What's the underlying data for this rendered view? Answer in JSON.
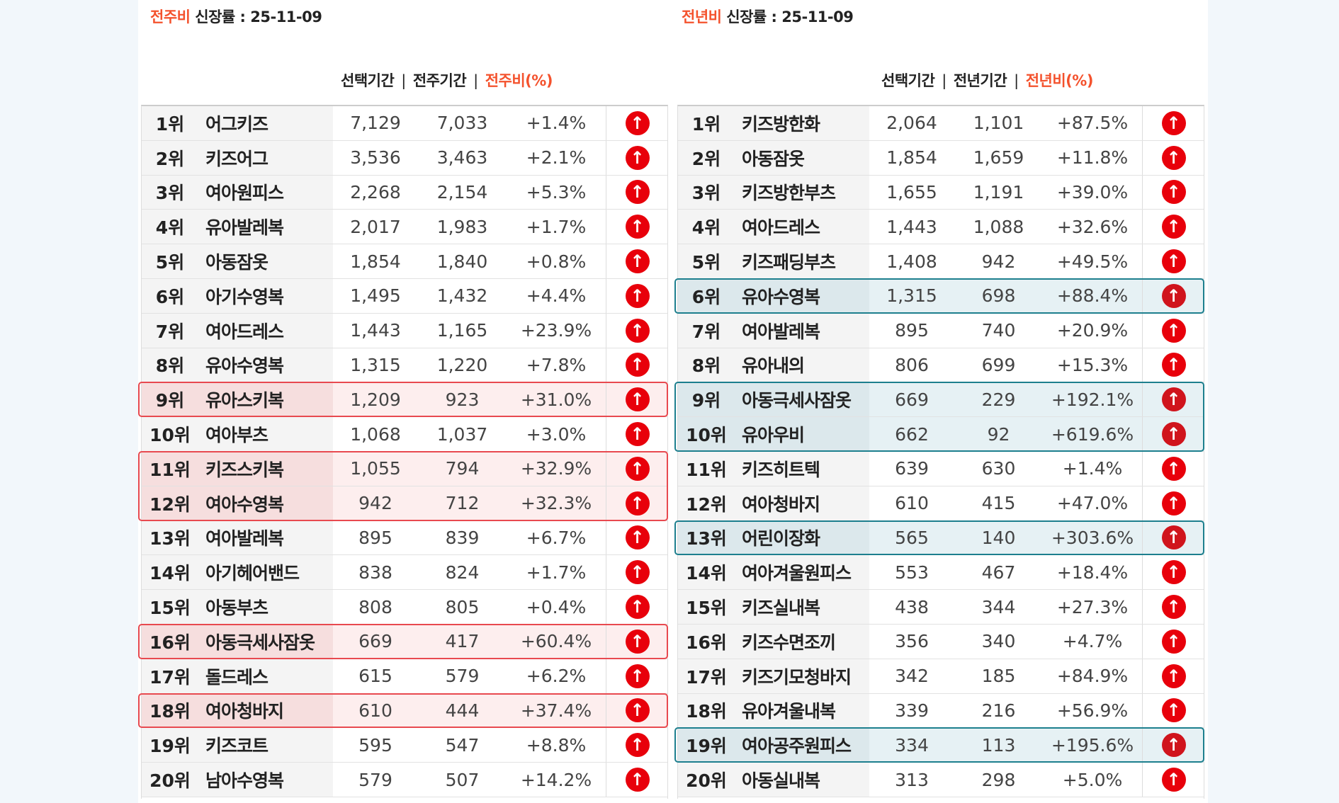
{
  "left": {
    "title_accent": "전주비",
    "title_rest": " 신장률  : 25-11-09",
    "headers": [
      "선택기간",
      "전주기간",
      "전주비(%)"
    ],
    "separator": "|",
    "highlight_color": "#e8494f",
    "rows": [
      {
        "rank": "1위",
        "name": "어그키즈",
        "cur": "7,129",
        "prev": "7,033",
        "pct": "+1.4%",
        "highlighted": false
      },
      {
        "rank": "2위",
        "name": "키즈어그",
        "cur": "3,536",
        "prev": "3,463",
        "pct": "+2.1%",
        "highlighted": false
      },
      {
        "rank": "3위",
        "name": "여아원피스",
        "cur": "2,268",
        "prev": "2,154",
        "pct": "+5.3%",
        "highlighted": false
      },
      {
        "rank": "4위",
        "name": "유아발레복",
        "cur": "2,017",
        "prev": "1,983",
        "pct": "+1.7%",
        "highlighted": false
      },
      {
        "rank": "5위",
        "name": "아동잠옷",
        "cur": "1,854",
        "prev": "1,840",
        "pct": "+0.8%",
        "highlighted": false
      },
      {
        "rank": "6위",
        "name": "아기수영복",
        "cur": "1,495",
        "prev": "1,432",
        "pct": "+4.4%",
        "highlighted": false
      },
      {
        "rank": "7위",
        "name": "여아드레스",
        "cur": "1,443",
        "prev": "1,165",
        "pct": "+23.9%",
        "highlighted": false
      },
      {
        "rank": "8위",
        "name": "유아수영복",
        "cur": "1,315",
        "prev": "1,220",
        "pct": "+7.8%",
        "highlighted": false
      },
      {
        "rank": "9위",
        "name": "유아스키복",
        "cur": "1,209",
        "prev": "923",
        "pct": "+31.0%",
        "highlighted": true
      },
      {
        "rank": "10위",
        "name": "여아부츠",
        "cur": "1,068",
        "prev": "1,037",
        "pct": "+3.0%",
        "highlighted": false
      },
      {
        "rank": "11위",
        "name": "키즈스키복",
        "cur": "1,055",
        "prev": "794",
        "pct": "+32.9%",
        "highlighted": true
      },
      {
        "rank": "12위",
        "name": "여아수영복",
        "cur": "942",
        "prev": "712",
        "pct": "+32.3%",
        "highlighted": true
      },
      {
        "rank": "13위",
        "name": "여아발레복",
        "cur": "895",
        "prev": "839",
        "pct": "+6.7%",
        "highlighted": false
      },
      {
        "rank": "14위",
        "name": "아기헤어밴드",
        "cur": "838",
        "prev": "824",
        "pct": "+1.7%",
        "highlighted": false
      },
      {
        "rank": "15위",
        "name": "아동부츠",
        "cur": "808",
        "prev": "805",
        "pct": "+0.4%",
        "highlighted": false
      },
      {
        "rank": "16위",
        "name": "아동극세사잠옷",
        "cur": "669",
        "prev": "417",
        "pct": "+60.4%",
        "highlighted": true
      },
      {
        "rank": "17위",
        "name": "돌드레스",
        "cur": "615",
        "prev": "579",
        "pct": "+6.2%",
        "highlighted": false
      },
      {
        "rank": "18위",
        "name": "여아청바지",
        "cur": "610",
        "prev": "444",
        "pct": "+37.4%",
        "highlighted": true
      },
      {
        "rank": "19위",
        "name": "키즈코트",
        "cur": "595",
        "prev": "547",
        "pct": "+8.8%",
        "highlighted": false
      },
      {
        "rank": "20위",
        "name": "남아수영복",
        "cur": "579",
        "prev": "507",
        "pct": "+14.2%",
        "highlighted": false
      }
    ]
  },
  "right": {
    "title_accent": "전년비",
    "title_rest": " 신장률 : 25-11-09",
    "headers": [
      "선택기간",
      "전년기간",
      "전년비(%)"
    ],
    "separator": "|",
    "highlight_color": "#1d7f8e",
    "rows": [
      {
        "rank": "1위",
        "name": "키즈방한화",
        "cur": "2,064",
        "prev": "1,101",
        "pct": "+87.5%",
        "highlighted": false
      },
      {
        "rank": "2위",
        "name": "아동잠옷",
        "cur": "1,854",
        "prev": "1,659",
        "pct": "+11.8%",
        "highlighted": false
      },
      {
        "rank": "3위",
        "name": "키즈방한부츠",
        "cur": "1,655",
        "prev": "1,191",
        "pct": "+39.0%",
        "highlighted": false
      },
      {
        "rank": "4위",
        "name": "여아드레스",
        "cur": "1,443",
        "prev": "1,088",
        "pct": "+32.6%",
        "highlighted": false
      },
      {
        "rank": "5위",
        "name": "키즈패딩부츠",
        "cur": "1,408",
        "prev": "942",
        "pct": "+49.5%",
        "highlighted": false
      },
      {
        "rank": "6위",
        "name": "유아수영복",
        "cur": "1,315",
        "prev": "698",
        "pct": "+88.4%",
        "highlighted": true
      },
      {
        "rank": "7위",
        "name": "여아발레복",
        "cur": "895",
        "prev": "740",
        "pct": "+20.9%",
        "highlighted": false
      },
      {
        "rank": "8위",
        "name": "유아내의",
        "cur": "806",
        "prev": "699",
        "pct": "+15.3%",
        "highlighted": false
      },
      {
        "rank": "9위",
        "name": "아동극세사잠옷",
        "cur": "669",
        "prev": "229",
        "pct": "+192.1%",
        "highlighted": true
      },
      {
        "rank": "10위",
        "name": "유아우비",
        "cur": "662",
        "prev": "92",
        "pct": "+619.6%",
        "highlighted": true
      },
      {
        "rank": "11위",
        "name": "키즈히트텍",
        "cur": "639",
        "prev": "630",
        "pct": "+1.4%",
        "highlighted": false
      },
      {
        "rank": "12위",
        "name": "여아청바지",
        "cur": "610",
        "prev": "415",
        "pct": "+47.0%",
        "highlighted": false
      },
      {
        "rank": "13위",
        "name": "어린이장화",
        "cur": "565",
        "prev": "140",
        "pct": "+303.6%",
        "highlighted": true
      },
      {
        "rank": "14위",
        "name": "여아겨울원피스",
        "cur": "553",
        "prev": "467",
        "pct": "+18.4%",
        "highlighted": false
      },
      {
        "rank": "15위",
        "name": "키즈실내복",
        "cur": "438",
        "prev": "344",
        "pct": "+27.3%",
        "highlighted": false
      },
      {
        "rank": "16위",
        "name": "키즈수면조끼",
        "cur": "356",
        "prev": "340",
        "pct": "+4.7%",
        "highlighted": false
      },
      {
        "rank": "17위",
        "name": "키즈기모청바지",
        "cur": "342",
        "prev": "185",
        "pct": "+84.9%",
        "highlighted": false
      },
      {
        "rank": "18위",
        "name": "유아겨울내복",
        "cur": "339",
        "prev": "216",
        "pct": "+56.9%",
        "highlighted": false
      },
      {
        "rank": "19위",
        "name": "여아공주원피스",
        "cur": "334",
        "prev": "113",
        "pct": "+195.6%",
        "highlighted": true
      },
      {
        "rank": "20위",
        "name": "아동실내복",
        "cur": "313",
        "prev": "298",
        "pct": "+5.0%",
        "highlighted": false
      }
    ]
  },
  "icons": {
    "trend": "arrow-up-circle-icon",
    "glyph": "↑"
  }
}
